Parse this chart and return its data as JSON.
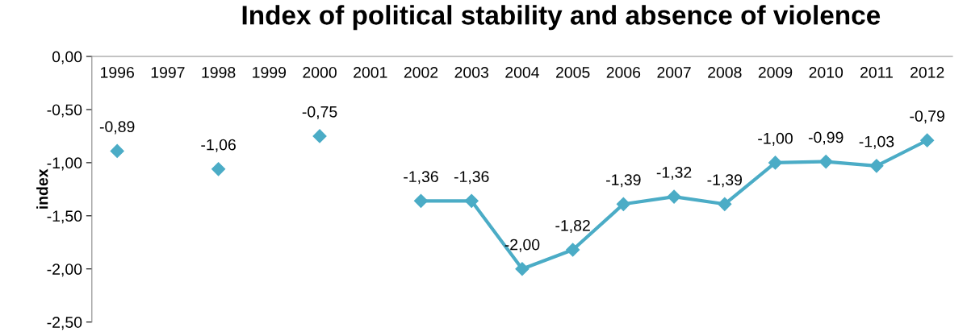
{
  "chart_data": {
    "type": "line",
    "title": "Index of political stability and absence of violence",
    "ylabel": "index",
    "categories": [
      "1996",
      "1997",
      "1998",
      "1999",
      "2000",
      "2001",
      "2002",
      "2003",
      "2004",
      "2005",
      "2006",
      "2007",
      "2008",
      "2009",
      "2010",
      "2011",
      "2012"
    ],
    "series": [
      {
        "color": "#4bacc6",
        "values": [
          -0.89,
          null,
          -1.06,
          null,
          -0.75,
          null,
          -1.36,
          -1.36,
          -2.0,
          -1.82,
          -1.39,
          -1.32,
          -1.39,
          -1.0,
          -0.99,
          -1.03,
          -0.79
        ],
        "value_labels": [
          "-0,89",
          null,
          "-1,06",
          null,
          "-0,75",
          null,
          "-1,36",
          "-1,36",
          "-2,00",
          "-1,82",
          "-1,39",
          "-1,32",
          "-1,39",
          "-1,00",
          "-0,99",
          "-1,03",
          "-0,79"
        ]
      }
    ],
    "ylim": [
      -2.5,
      0
    ],
    "yticks": [
      {
        "value": 0,
        "label": "0,00"
      },
      {
        "value": -0.5,
        "label": "-0,50"
      },
      {
        "value": -1,
        "label": "-1,00"
      },
      {
        "value": -1.5,
        "label": "-1,50"
      },
      {
        "value": -2,
        "label": "-2,00"
      },
      {
        "value": -2.5,
        "label": "-2,50"
      }
    ],
    "marker": "diamond",
    "line_style": "solid",
    "grid": false,
    "legend": false
  }
}
